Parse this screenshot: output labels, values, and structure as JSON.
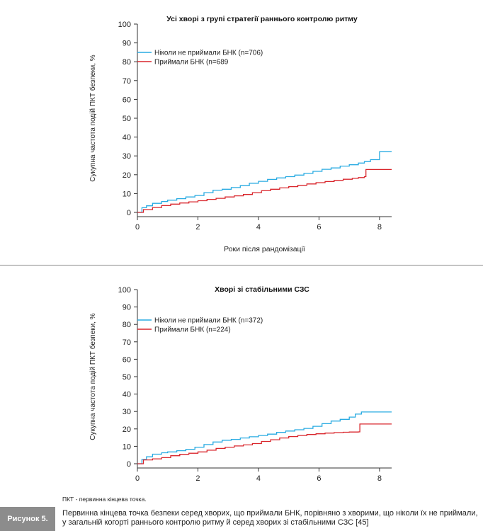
{
  "charts": [
    {
      "title": "Усі хворі з групі стратегії раннього контролю ритму",
      "ylabel": "Сукупна частота подій ПКТ безпеки, %",
      "xlabel": "Роки після рандомізації"
    },
    {
      "title": "Хворі зі стабільними СЗС",
      "ylabel": "Сукупна частота подій ПКТ безпеки, %",
      "xlabel": "Роки після рандомізації"
    }
  ],
  "chart_data": [
    {
      "type": "line",
      "title": "Усі хворі з групі стратегії раннього контролю ритму",
      "xlabel": "Роки після рандомізації",
      "ylabel": "Сукупна частота подій ПКТ безпеки, %",
      "xlim": [
        0,
        8.4
      ],
      "ylim": [
        0,
        100
      ],
      "xticks": [
        0,
        2,
        4,
        6,
        8
      ],
      "yticks": [
        0,
        10,
        20,
        30,
        40,
        50,
        60,
        70,
        80,
        90,
        100
      ],
      "legend": "top-left",
      "series": [
        {
          "name": "Ніколи не приймали БНК (n=706)",
          "color": "#29abe2",
          "x": [
            0,
            0.15,
            0.3,
            0.5,
            0.8,
            1.0,
            1.3,
            1.6,
            1.9,
            2.2,
            2.5,
            2.8,
            3.1,
            3.4,
            3.7,
            4.0,
            4.3,
            4.6,
            4.9,
            5.2,
            5.5,
            5.8,
            6.1,
            6.4,
            6.7,
            7.0,
            7.3,
            7.5,
            7.7,
            8.0,
            8.4
          ],
          "y": [
            0,
            2.5,
            3.5,
            4.8,
            5.8,
            6.5,
            7.3,
            8.2,
            9.0,
            10.5,
            11.8,
            12.3,
            13.2,
            14.2,
            15.5,
            16.5,
            17.5,
            18.3,
            19.0,
            19.8,
            20.7,
            21.8,
            22.9,
            23.6,
            24.6,
            25.3,
            26.2,
            27.0,
            28.0,
            32.2,
            32.2
          ]
        },
        {
          "name": "Приймали БНК (n=689",
          "color": "#d9262c",
          "x": [
            0,
            0.2,
            0.5,
            0.8,
            1.1,
            1.4,
            1.7,
            2.0,
            2.3,
            2.6,
            2.9,
            3.2,
            3.5,
            3.8,
            4.1,
            4.4,
            4.7,
            5.0,
            5.3,
            5.6,
            5.9,
            6.2,
            6.5,
            6.8,
            7.1,
            7.3,
            7.5,
            7.55,
            8.4
          ],
          "y": [
            0,
            1.5,
            2.6,
            3.6,
            4.4,
            5.0,
            5.6,
            6.2,
            6.9,
            7.5,
            8.2,
            8.8,
            9.5,
            10.5,
            11.5,
            12.3,
            13.0,
            13.7,
            14.4,
            15.1,
            15.8,
            16.4,
            17.0,
            17.6,
            18.1,
            18.5,
            19.0,
            22.8,
            22.8
          ]
        }
      ]
    },
    {
      "type": "line",
      "title": "Хворі зі стабільними СЗС",
      "xlabel": "Роки після рандомізації",
      "ylabel": "Сукупна частота подій ПКТ безпеки, %",
      "xlim": [
        0,
        8.4
      ],
      "ylim": [
        0,
        100
      ],
      "xticks": [
        0,
        2,
        4,
        6,
        8
      ],
      "yticks": [
        0,
        10,
        20,
        30,
        40,
        50,
        60,
        70,
        80,
        90,
        100
      ],
      "legend": "top-left",
      "series": [
        {
          "name": "Ніколи не приймали БНК (n=372)",
          "color": "#29abe2",
          "x": [
            0,
            0.15,
            0.3,
            0.5,
            0.8,
            1.0,
            1.3,
            1.6,
            1.9,
            2.2,
            2.5,
            2.8,
            3.1,
            3.4,
            3.7,
            4.0,
            4.3,
            4.6,
            4.9,
            5.2,
            5.5,
            5.8,
            6.1,
            6.4,
            6.7,
            7.0,
            7.2,
            7.4,
            8.4
          ],
          "y": [
            0,
            2.5,
            4.0,
            5.5,
            6.3,
            6.8,
            7.5,
            8.3,
            9.5,
            11.0,
            12.5,
            13.5,
            14.0,
            14.8,
            15.5,
            16.2,
            17.0,
            18.0,
            18.8,
            19.5,
            20.3,
            21.5,
            23.0,
            24.5,
            25.5,
            26.8,
            28.5,
            29.7,
            29.7
          ]
        },
        {
          "name": "Приймали БНК (n=224)",
          "color": "#d9262c",
          "x": [
            0,
            0.2,
            0.5,
            0.8,
            1.1,
            1.4,
            1.7,
            2.0,
            2.3,
            2.6,
            2.9,
            3.2,
            3.5,
            3.8,
            4.1,
            4.4,
            4.7,
            5.0,
            5.3,
            5.6,
            5.9,
            6.2,
            6.5,
            6.8,
            7.0,
            7.3,
            7.35,
            8.4
          ],
          "y": [
            0,
            2.2,
            2.8,
            3.5,
            4.6,
            5.4,
            6.0,
            6.8,
            7.8,
            8.8,
            9.5,
            10.2,
            10.8,
            11.6,
            12.8,
            13.8,
            14.8,
            15.6,
            16.2,
            16.8,
            17.2,
            17.6,
            17.9,
            18.1,
            18.2,
            18.3,
            22.8,
            22.8
          ]
        }
      ]
    }
  ],
  "footnote": "ПКТ - первинна кінцева точка.",
  "figure_caption": {
    "label": "Рисунок 5.",
    "text": "Первинна кінцева точка безпеки серед хворих, що приймали БНК, порівняно з хворими, що ніколи їх не приймали, у загальній когорті раннього контролю ритму й серед хворих зі стабільними СЗС [45]"
  }
}
